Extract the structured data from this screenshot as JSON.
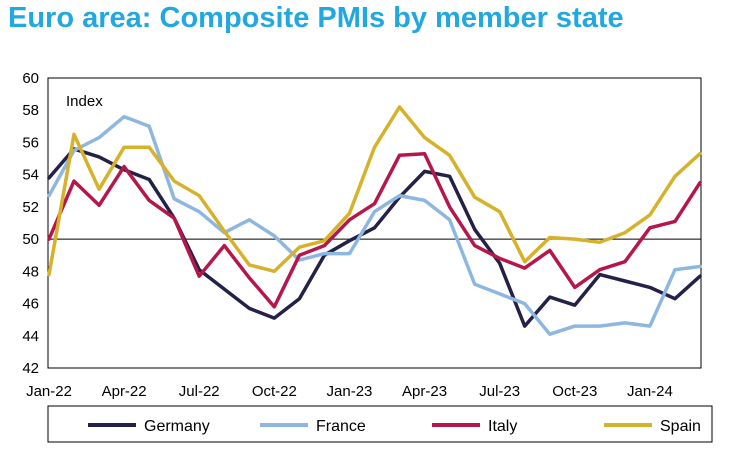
{
  "title": "Euro area: Composite PMIs by member state",
  "chart_data": {
    "type": "line",
    "y_axis_label": "Index",
    "ylim": [
      42,
      60
    ],
    "y_ticks": [
      42,
      44,
      46,
      48,
      50,
      52,
      54,
      56,
      58,
      60
    ],
    "reference_line": 50,
    "x": [
      "Jan-22",
      "Feb-22",
      "Mar-22",
      "Apr-22",
      "May-22",
      "Jun-22",
      "Jul-22",
      "Aug-22",
      "Sep-22",
      "Oct-22",
      "Nov-22",
      "Dec-22",
      "Jan-23",
      "Feb-23",
      "Mar-23",
      "Apr-23",
      "May-23",
      "Jun-23",
      "Jul-23",
      "Aug-23",
      "Sep-23",
      "Oct-23",
      "Nov-23",
      "Dec-23",
      "Jan-24",
      "Feb-24",
      "Mar-24"
    ],
    "x_tick_labels": [
      "Jan-22",
      "Apr-22",
      "Jul-22",
      "Oct-22",
      "Jan-23",
      "Apr-23",
      "Jul-23",
      "Oct-23",
      "Jan-24"
    ],
    "legend_position": "bottom",
    "series": [
      {
        "name": "Germany",
        "color": "#232148",
        "values": [
          53.8,
          55.6,
          55.1,
          54.3,
          53.7,
          51.3,
          48.1,
          46.9,
          45.7,
          45.1,
          46.3,
          49.0,
          49.9,
          50.7,
          52.6,
          54.2,
          53.9,
          50.6,
          48.5,
          44.6,
          46.4,
          45.9,
          47.8,
          47.4,
          47.0,
          46.3,
          47.7
        ]
      },
      {
        "name": "France",
        "color": "#8db7e0",
        "values": [
          52.7,
          55.5,
          56.3,
          57.6,
          57.0,
          52.5,
          51.7,
          50.4,
          51.2,
          50.2,
          48.7,
          49.1,
          49.1,
          51.7,
          52.7,
          52.4,
          51.2,
          47.2,
          46.6,
          46.0,
          44.1,
          44.6,
          44.6,
          44.8,
          44.6,
          48.1,
          48.3
        ]
      },
      {
        "name": "Italy",
        "color": "#b5174a",
        "values": [
          50.0,
          53.6,
          52.1,
          54.5,
          52.4,
          51.3,
          47.7,
          49.6,
          47.6,
          45.8,
          49.0,
          49.6,
          51.2,
          52.2,
          55.2,
          55.3,
          52.0,
          49.6,
          48.8,
          48.2,
          49.3,
          47.0,
          48.1,
          48.6,
          50.7,
          51.1,
          53.5
        ]
      },
      {
        "name": "Spain",
        "color": "#d6b12a",
        "values": [
          47.8,
          56.5,
          53.1,
          55.7,
          55.7,
          53.6,
          52.7,
          50.5,
          48.4,
          48.0,
          49.5,
          49.9,
          51.6,
          55.7,
          58.2,
          56.3,
          55.2,
          52.6,
          51.7,
          48.6,
          50.1,
          50.0,
          49.8,
          50.4,
          51.5,
          53.9,
          55.3
        ]
      }
    ]
  }
}
